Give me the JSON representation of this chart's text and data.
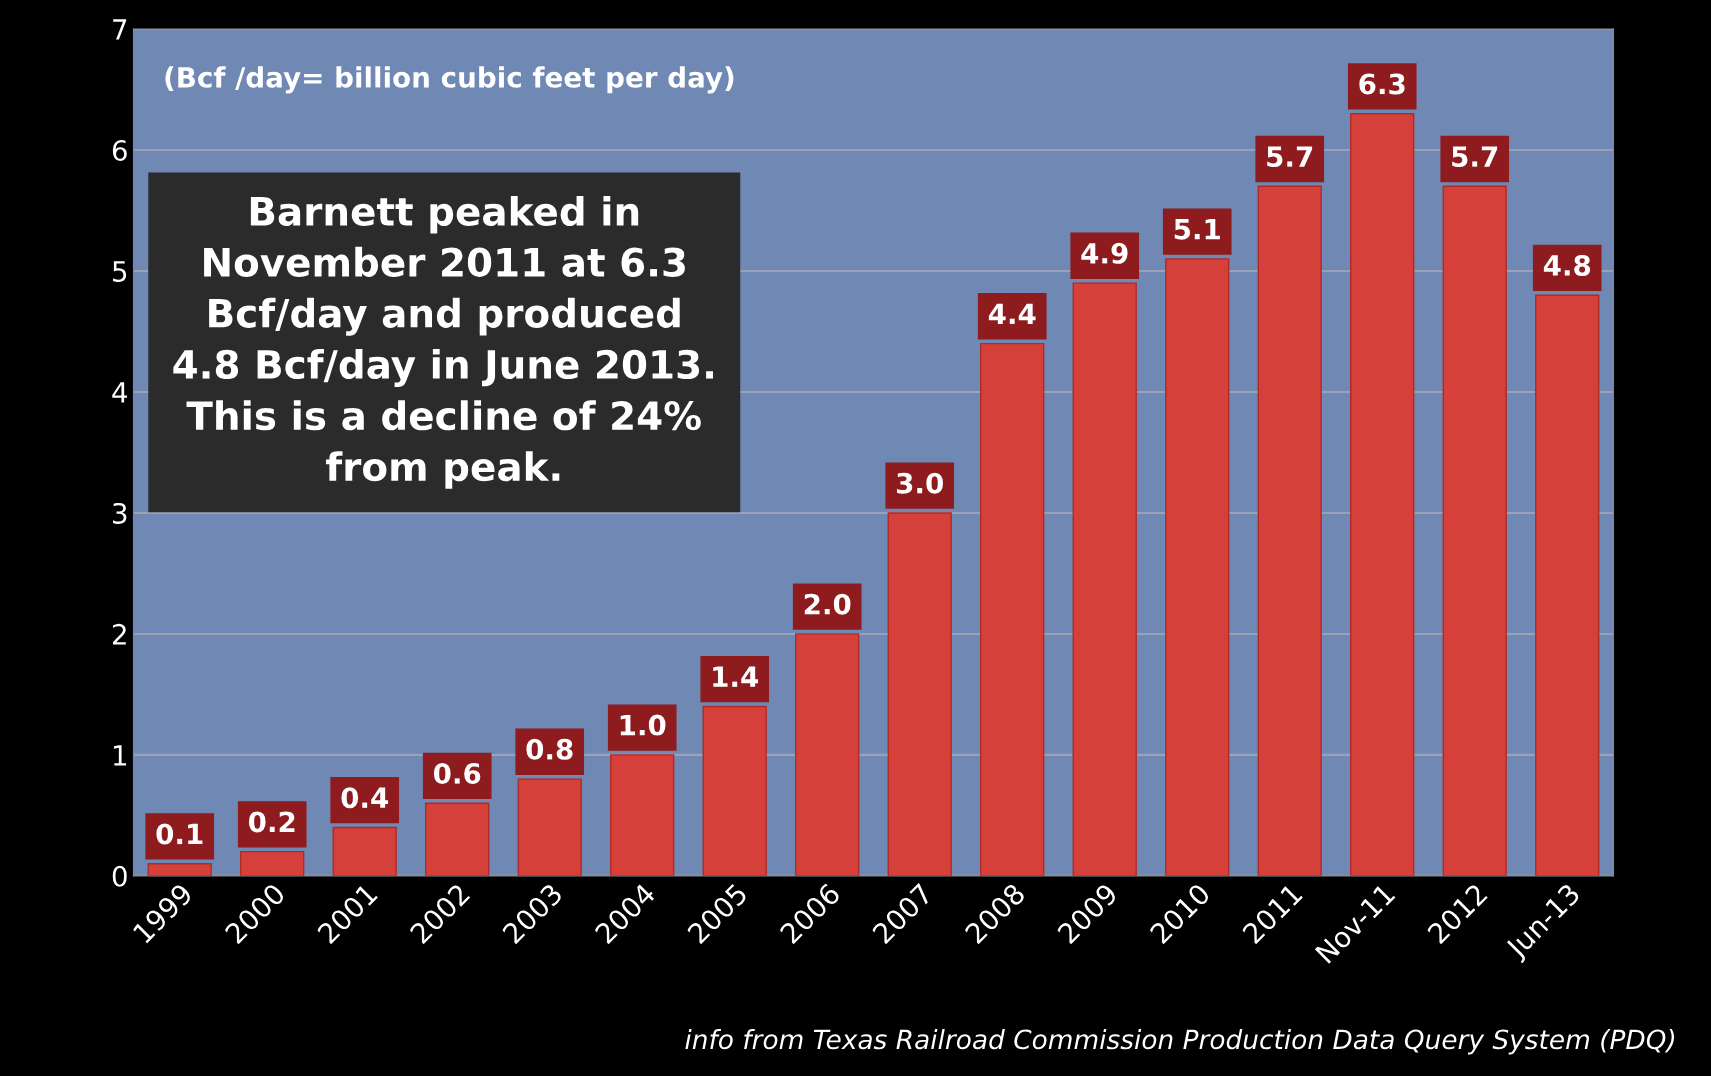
{
  "chart_data": {
    "type": "bar",
    "categories": [
      "1999",
      "2000",
      "2001",
      "2002",
      "2003",
      "2004",
      "2005",
      "2006",
      "2007",
      "2008",
      "2009",
      "2010",
      "2011",
      "Nov-11",
      "2012",
      "Jun-13"
    ],
    "values": [
      0.1,
      0.2,
      0.4,
      0.6,
      0.8,
      1.0,
      1.4,
      2.0,
      3.0,
      4.4,
      4.9,
      5.1,
      5.7,
      6.3,
      5.7,
      4.8
    ],
    "value_labels": [
      "0.1",
      "0.2",
      "0.4",
      "0.6",
      "0.8",
      "1.0",
      "1.4",
      "2.0",
      "3.0",
      "4.4",
      "4.9",
      "5.1",
      "5.7",
      "6.3",
      "5.7",
      "4.8"
    ],
    "color": "#d6403b",
    "ylim": [
      0,
      7
    ],
    "yticks": [
      0,
      1,
      2,
      3,
      4,
      5,
      6,
      7
    ],
    "grid": "y",
    "annotations": [
      "(Bcf /day= billion cubic feet per day)",
      "Barnett peaked in\nNovember 2011 at 6.3\nBcf/day and produced\n4.8 Bcf/day in June 2013.\nThis is a decline of 24%\nfrom peak.",
      "info from Texas Railroad Commission Production Data Query System (PDQ)"
    ]
  }
}
